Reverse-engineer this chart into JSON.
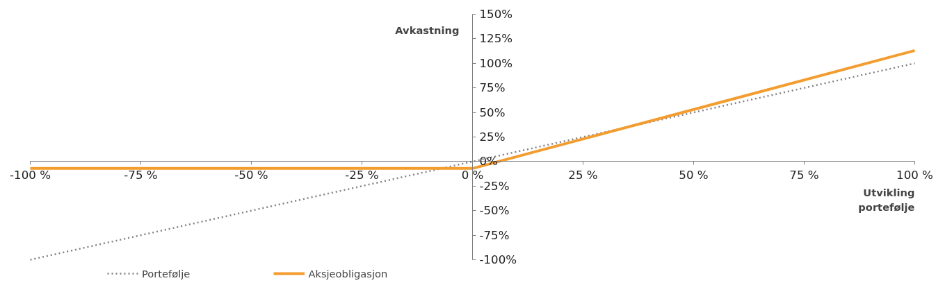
{
  "chart_data": {
    "type": "line",
    "xlabel": "Utvikling portefølje",
    "ylabel": "Avkastning",
    "series": [
      {
        "name": "Portefølje",
        "color": "#808080",
        "line_style": "dotted",
        "x": [
          -100,
          100
        ],
        "values": [
          -100,
          100
        ]
      },
      {
        "name": "Aksjeobligasjon",
        "color": "#f39c2f",
        "line_style": "solid",
        "x": [
          -100,
          0,
          100
        ],
        "values": [
          -7,
          -7,
          113
        ]
      }
    ],
    "xlim": [
      -100,
      100
    ],
    "ylim": [
      -100,
      150
    ],
    "xticks": [
      {
        "value": -100,
        "label": "-100 %"
      },
      {
        "value": -75,
        "label": "-75 %"
      },
      {
        "value": -50,
        "label": "-50 %"
      },
      {
        "value": -25,
        "label": "-25 %"
      },
      {
        "value": 0,
        "label": "0 %"
      },
      {
        "value": 25,
        "label": "25 %"
      },
      {
        "value": 50,
        "label": "50 %"
      },
      {
        "value": 75,
        "label": "75 %"
      },
      {
        "value": 100,
        "label": "100 %"
      }
    ],
    "yticks": [
      {
        "value": -100,
        "label": "-100%"
      },
      {
        "value": -75,
        "label": "-75%"
      },
      {
        "value": -50,
        "label": "-50%"
      },
      {
        "value": -25,
        "label": "-25%"
      },
      {
        "value": 0,
        "label": "0%"
      },
      {
        "value": 25,
        "label": "25%"
      },
      {
        "value": 50,
        "label": "50%"
      },
      {
        "value": 75,
        "label": "75%"
      },
      {
        "value": 100,
        "label": "100%"
      },
      {
        "value": 125,
        "label": "125%"
      },
      {
        "value": 150,
        "label": "150%"
      }
    ],
    "grid": false,
    "legend": "bottom"
  }
}
